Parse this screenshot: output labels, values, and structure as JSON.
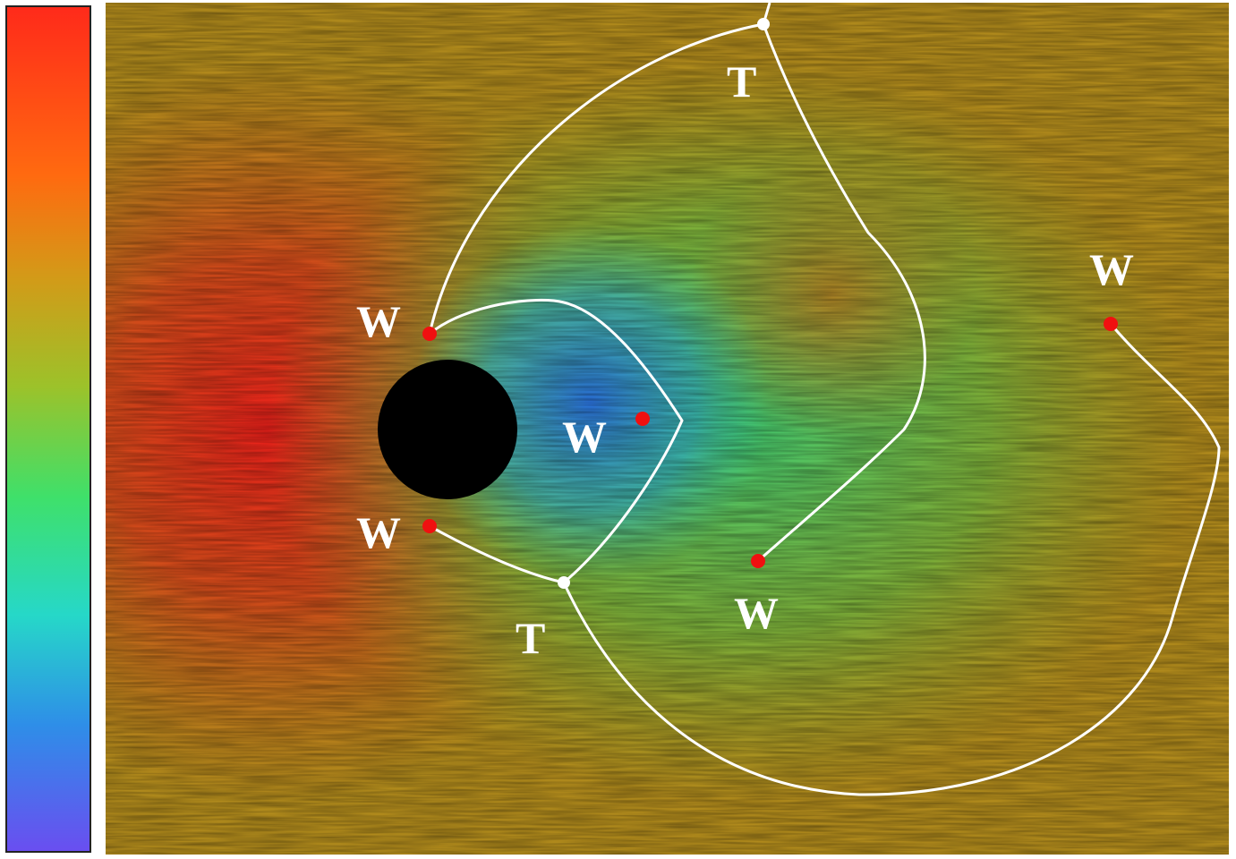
{
  "labels": [
    "W",
    "W",
    "W",
    "W",
    "W",
    "T",
    "T"
  ]
}
